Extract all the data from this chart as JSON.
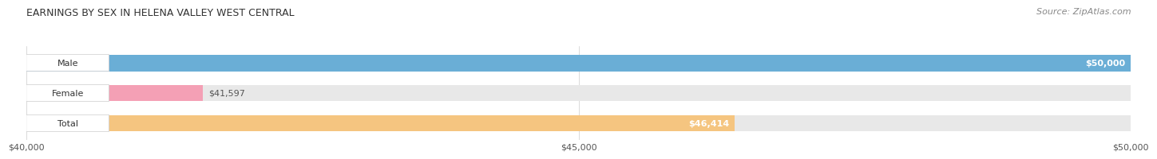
{
  "title": "EARNINGS BY SEX IN HELENA VALLEY WEST CENTRAL",
  "source": "Source: ZipAtlas.com",
  "categories": [
    "Male",
    "Female",
    "Total"
  ],
  "values": [
    50000,
    41597,
    46414
  ],
  "bar_colors": [
    "#6aaed6",
    "#f4a0b5",
    "#f5c580"
  ],
  "bar_bg_color": "#e8e8e8",
  "xmin": 40000,
  "xmax": 50000,
  "xticks": [
    40000,
    45000,
    50000
  ],
  "xtick_labels": [
    "$40,000",
    "$45,000",
    "$50,000"
  ],
  "value_labels": [
    "$50,000",
    "$41,597",
    "$46,414"
  ],
  "value_label_inside": [
    true,
    false,
    true
  ],
  "title_fontsize": 9,
  "source_fontsize": 8,
  "tick_fontsize": 8,
  "label_fontsize": 8,
  "value_fontsize": 8
}
